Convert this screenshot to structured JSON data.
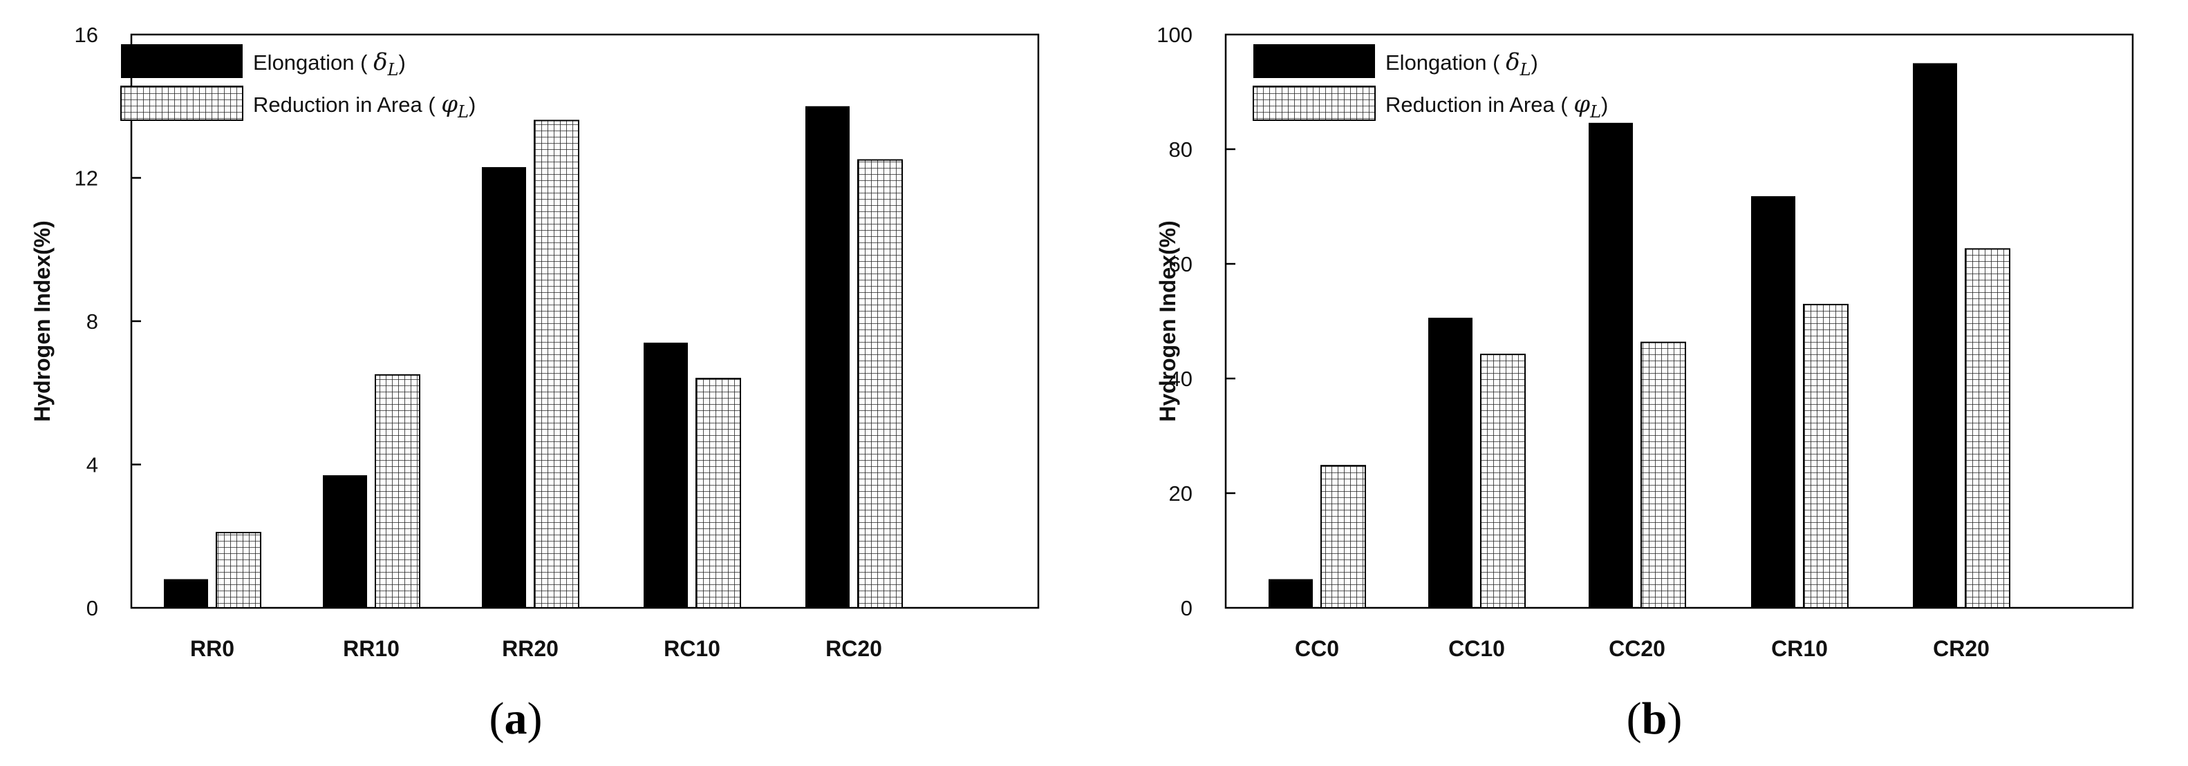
{
  "chart_data": [
    {
      "type": "bar",
      "panel_id": "a",
      "caption_letter": "a",
      "categories": [
        "RR0",
        "RR10",
        "RR20",
        "RC10",
        "RC20"
      ],
      "series": [
        {
          "name": "Elongation",
          "symbol": "δ",
          "subscript": "L",
          "pattern": "solid-black",
          "values": [
            0.8,
            3.7,
            12.3,
            7.4,
            14.0
          ]
        },
        {
          "name": "Reduction in Area",
          "symbol": "φ",
          "subscript": "L",
          "pattern": "grid-hatch",
          "values": [
            2.1,
            6.5,
            13.6,
            6.4,
            12.5
          ]
        }
      ],
      "ylabel": "Hydrogen Index(%)",
      "xlabel": "",
      "ylim": [
        0,
        16
      ],
      "yticks": [
        0,
        4,
        8,
        12,
        16
      ],
      "grid": false,
      "legend_position": "top-left"
    },
    {
      "type": "bar",
      "panel_id": "b",
      "caption_letter": "b",
      "categories": [
        "CC0",
        "CC10",
        "CC20",
        "CR10",
        "CR20"
      ],
      "series": [
        {
          "name": "Elongation",
          "symbol": "δ",
          "subscript": "L",
          "pattern": "solid-black",
          "values": [
            5.0,
            50.6,
            84.6,
            71.8,
            95.0
          ]
        },
        {
          "name": "Reduction in Area",
          "symbol": "φ",
          "subscript": "L",
          "pattern": "grid-hatch",
          "values": [
            24.8,
            44.2,
            46.3,
            52.9,
            62.6
          ]
        }
      ],
      "ylabel": "Hydrogen Index(%)",
      "xlabel": "",
      "ylim": [
        0,
        100
      ],
      "yticks": [
        0,
        20,
        40,
        60,
        80,
        100
      ],
      "grid": false,
      "legend_position": "top-left"
    }
  ],
  "colors": {
    "solid_bar": "#000000",
    "hatch_line": "#222222",
    "axis": "#000000",
    "background": "#ffffff"
  }
}
